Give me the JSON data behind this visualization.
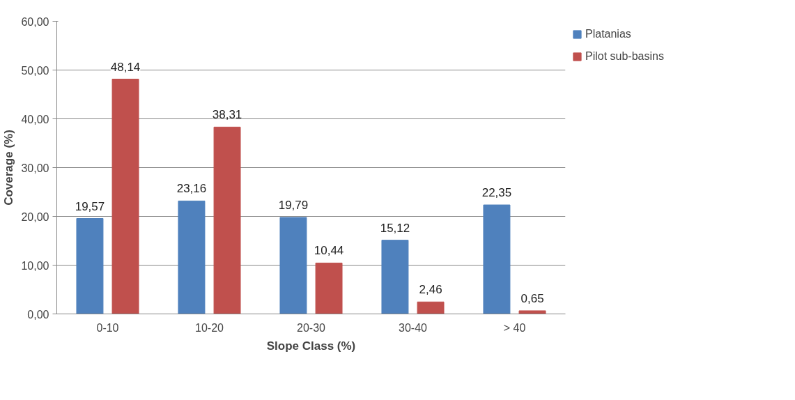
{
  "chart_data": {
    "type": "bar",
    "xlabel": "Slope Class (%)",
    "ylabel": "Coverage (%)",
    "categories": [
      "0-10",
      "10-20",
      "20-30",
      "30-40",
      "> 40"
    ],
    "series": [
      {
        "name": "Platanias",
        "color": "#4f81bd",
        "values": [
          19.57,
          23.16,
          19.79,
          15.12,
          22.35
        ],
        "value_labels": [
          "19,57",
          "23,16",
          "19,79",
          "15,12",
          "22,35"
        ]
      },
      {
        "name": "Pilot sub-basins",
        "color": "#c0504d",
        "values": [
          48.14,
          38.31,
          10.44,
          2.46,
          0.65
        ],
        "value_labels": [
          "48,14",
          "38,31",
          "10,44",
          "2,46",
          "0,65"
        ]
      }
    ],
    "ylim": [
      0,
      60
    ],
    "yticks": [
      {
        "value": 0,
        "label": "0,00"
      },
      {
        "value": 10,
        "label": "10,00"
      },
      {
        "value": 20,
        "label": "20,00"
      },
      {
        "value": 30,
        "label": "30,00"
      },
      {
        "value": 40,
        "label": "40,00"
      },
      {
        "value": 50,
        "label": "50,00"
      },
      {
        "value": 60,
        "label": "60,00"
      }
    ],
    "grid": "y",
    "legend": "right"
  }
}
